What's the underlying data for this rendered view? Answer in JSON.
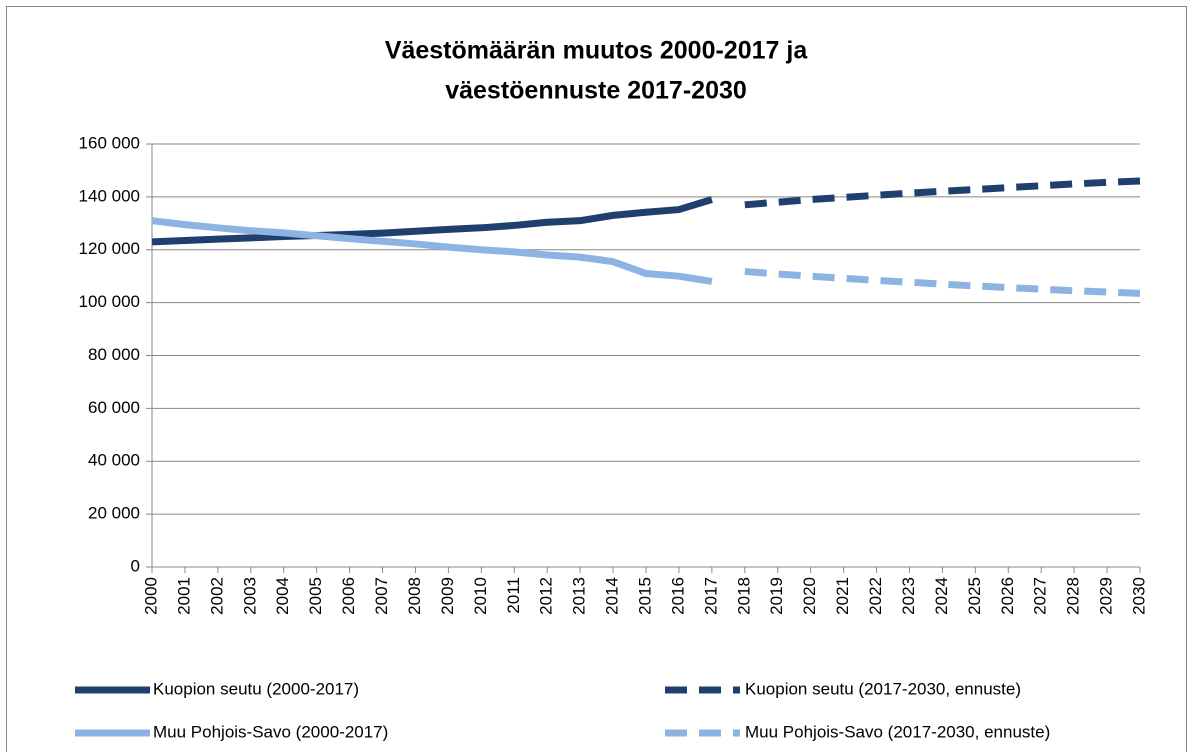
{
  "chart_data": {
    "type": "line",
    "title": [
      "Väestömäärän muutos 2000-2017 ja",
      "väestöennuste 2017-2030"
    ],
    "categories": [
      "2000",
      "2001",
      "2002",
      "2003",
      "2004",
      "2005",
      "2006",
      "2007",
      "2008",
      "2009",
      "2010",
      "2011",
      "2012",
      "2013",
      "2014",
      "2015",
      "2016",
      "2017",
      "2018",
      "2019",
      "2020",
      "2021",
      "2022",
      "2023",
      "2024",
      "2025",
      "2026",
      "2027",
      "2028",
      "2029",
      "2030"
    ],
    "series": [
      {
        "name": "Kuopion seutu (2000-2017)",
        "color": "#1f3f6e",
        "dashed": false,
        "values": [
          123000,
          123500,
          124000,
          124500,
          125000,
          125400,
          125800,
          126300,
          127000,
          127700,
          128300,
          129200,
          130400,
          131000,
          133000,
          134200,
          135200,
          139000,
          null,
          null,
          null,
          null,
          null,
          null,
          null,
          null,
          null,
          null,
          null,
          null,
          null
        ]
      },
      {
        "name": "Kuopion seutu (2017-2030, ennuste)",
        "color": "#1f3f6e",
        "dashed": true,
        "values": [
          null,
          null,
          null,
          null,
          null,
          null,
          null,
          null,
          null,
          null,
          null,
          null,
          null,
          null,
          null,
          null,
          null,
          null,
          137000,
          138000,
          139000,
          139800,
          140600,
          141400,
          142100,
          142800,
          143500,
          144200,
          144900,
          145500,
          146000
        ]
      },
      {
        "name": "Muu Pohjois-Savo (2000-2017)",
        "color": "#8db3e2",
        "dashed": false,
        "values": [
          131000,
          129500,
          128300,
          127200,
          126400,
          125300,
          124200,
          123200,
          122200,
          121000,
          120000,
          119200,
          118000,
          117200,
          115500,
          111000,
          110000,
          108000,
          null,
          null,
          null,
          null,
          null,
          null,
          null,
          null,
          null,
          null,
          null,
          null,
          null
        ]
      },
      {
        "name": "Muu Pohjois-Savo (2017-2030, ennuste)",
        "color": "#8db3e2",
        "dashed": true,
        "values": [
          null,
          null,
          null,
          null,
          null,
          null,
          null,
          null,
          null,
          null,
          null,
          null,
          null,
          null,
          null,
          null,
          null,
          null,
          111800,
          110800,
          110000,
          109200,
          108400,
          107700,
          107000,
          106300,
          105700,
          105100,
          104500,
          104000,
          103500
        ]
      }
    ],
    "ylim": [
      0,
      160000
    ],
    "yticks": [
      0,
      {
        "value": 20000,
        "label": "20 000"
      },
      {
        "value": 40000,
        "label": "40 000"
      },
      {
        "value": 60000,
        "label": "60 000"
      },
      {
        "value": 80000,
        "label": "80 000"
      },
      {
        "value": 100000,
        "label": "100 000"
      },
      {
        "value": 120000,
        "label": "120 000"
      },
      {
        "value": 140000,
        "label": "140 000"
      },
      {
        "value": 160000,
        "label": "160 000"
      }
    ],
    "grid": true,
    "legend": "bottom"
  }
}
